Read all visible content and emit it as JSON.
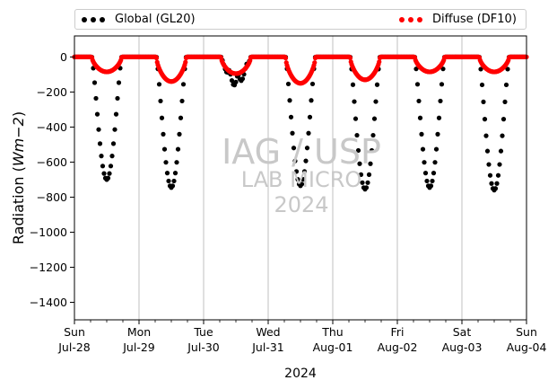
{
  "colors": {
    "global": "#000000",
    "diffuse": "#ff0000",
    "grid": "#b0b0b0",
    "watermark": "#c8c8c8"
  },
  "legend": {
    "global_label": "Global (GL20)",
    "diffuse_label": "Diffuse (DF10)"
  },
  "watermark": {
    "line1": "IAG / USP",
    "line2": "LAB MICRO",
    "line3": "2024"
  },
  "chart_data": {
    "type": "scatter",
    "ylabel": "Radiation (Wm−2)",
    "xlabel": "2024",
    "ylim": [
      -1500,
      120
    ],
    "yticks": [
      0,
      -200,
      -400,
      -600,
      -800,
      -1000,
      -1200,
      -1400
    ],
    "xlim_days": [
      0,
      7
    ],
    "grid": "vertical-only",
    "legend_placement": "top, outside",
    "xtick_labels": [
      {
        "day": "Sun",
        "date": "Jul-28"
      },
      {
        "day": "Mon",
        "date": "Jul-29"
      },
      {
        "day": "Tue",
        "date": "Jul-30"
      },
      {
        "day": "Wed",
        "date": "Jul-31"
      },
      {
        "day": "Thu",
        "date": "Aug-01"
      },
      {
        "day": "Fri",
        "date": "Aug-02"
      },
      {
        "day": "Sat",
        "date": "Aug-03"
      },
      {
        "day": "Sun",
        "date": "Aug-04"
      }
    ],
    "days": [
      {
        "date": "Jul-28",
        "global_min": -700,
        "diffuse_min": -85
      },
      {
        "date": "Jul-29",
        "global_min": -745,
        "diffuse_min": -140
      },
      {
        "date": "Jul-30",
        "global_min": -165,
        "diffuse_min": -95
      },
      {
        "date": "Jul-31",
        "global_min": -735,
        "diffuse_min": -150
      },
      {
        "date": "Aug-01",
        "global_min": -755,
        "diffuse_min": -130
      },
      {
        "date": "Aug-02",
        "global_min": -745,
        "diffuse_min": -85
      },
      {
        "date": "Aug-03",
        "global_min": -760,
        "diffuse_min": -85
      }
    ],
    "series": [
      {
        "name": "Global (GL20)"
      },
      {
        "name": "Diffuse (DF10)"
      }
    ]
  }
}
